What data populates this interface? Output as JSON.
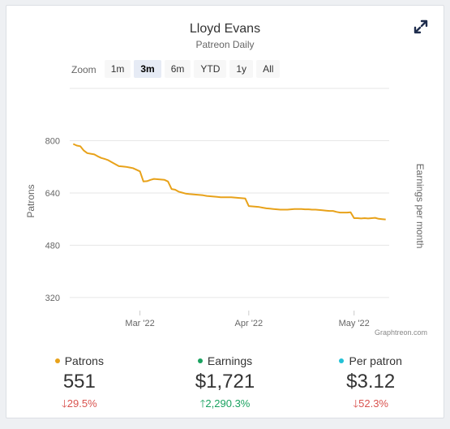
{
  "card": {
    "title": "Lloyd Evans",
    "subtitle": "Patreon Daily",
    "credit": "Graphtreon.com",
    "expand_icon": "expand-icon"
  },
  "zoom": {
    "label": "Zoom",
    "buttons": [
      "1m",
      "3m",
      "6m",
      "YTD",
      "1y",
      "All"
    ],
    "active": "3m"
  },
  "chart_data": {
    "type": "line",
    "title": "Lloyd Evans",
    "subtitle": "Patreon Daily",
    "ylabel": "Patrons",
    "y2label": "Earnings per month",
    "ylim": [
      280,
      960
    ],
    "yticks": [
      320,
      480,
      640,
      800
    ],
    "x_range_days": [
      0,
      91
    ],
    "xticks": [
      {
        "label": "Mar '22",
        "day": 20
      },
      {
        "label": "Apr '22",
        "day": 51
      },
      {
        "label": "May '22",
        "day": 81
      }
    ],
    "series": [
      {
        "name": "Patrons",
        "color": "#e8a21a",
        "points": [
          [
            1,
            790
          ],
          [
            2,
            785
          ],
          [
            3,
            783
          ],
          [
            4,
            770
          ],
          [
            5,
            762
          ],
          [
            6,
            760
          ],
          [
            7,
            758
          ],
          [
            8,
            752
          ],
          [
            9,
            747
          ],
          [
            10,
            744
          ],
          [
            11,
            740
          ],
          [
            12,
            734
          ],
          [
            13,
            728
          ],
          [
            14,
            722
          ],
          [
            15,
            721
          ],
          [
            16,
            720
          ],
          [
            17,
            718
          ],
          [
            18,
            716
          ],
          [
            19,
            711
          ],
          [
            20,
            706
          ],
          [
            21,
            675
          ],
          [
            22,
            676
          ],
          [
            23,
            680
          ],
          [
            24,
            683
          ],
          [
            25,
            682
          ],
          [
            26,
            681
          ],
          [
            27,
            680
          ],
          [
            28,
            675
          ],
          [
            29,
            652
          ],
          [
            30,
            650
          ],
          [
            31,
            644
          ],
          [
            32,
            641
          ],
          [
            33,
            638
          ],
          [
            34,
            637
          ],
          [
            35,
            636
          ],
          [
            36,
            635
          ],
          [
            37,
            634
          ],
          [
            38,
            633
          ],
          [
            39,
            631
          ],
          [
            40,
            630
          ],
          [
            41,
            629
          ],
          [
            42,
            628
          ],
          [
            43,
            627
          ],
          [
            44,
            627
          ],
          [
            45,
            627
          ],
          [
            46,
            627
          ],
          [
            47,
            626
          ],
          [
            48,
            625
          ],
          [
            49,
            624
          ],
          [
            50,
            623
          ],
          [
            51,
            600
          ],
          [
            52,
            599
          ],
          [
            53,
            598
          ],
          [
            54,
            597
          ],
          [
            55,
            595
          ],
          [
            56,
            593
          ],
          [
            57,
            592
          ],
          [
            58,
            591
          ],
          [
            59,
            590
          ],
          [
            60,
            589
          ],
          [
            61,
            589
          ],
          [
            62,
            589
          ],
          [
            63,
            590
          ],
          [
            64,
            591
          ],
          [
            65,
            591
          ],
          [
            66,
            591
          ],
          [
            67,
            590
          ],
          [
            68,
            590
          ],
          [
            69,
            589
          ],
          [
            70,
            589
          ],
          [
            71,
            588
          ],
          [
            72,
            587
          ],
          [
            73,
            586
          ],
          [
            74,
            585
          ],
          [
            75,
            585
          ],
          [
            76,
            582
          ],
          [
            77,
            580
          ],
          [
            78,
            580
          ],
          [
            79,
            580
          ],
          [
            80,
            581
          ],
          [
            81,
            563
          ],
          [
            82,
            563
          ],
          [
            83,
            562
          ],
          [
            84,
            563
          ],
          [
            85,
            562
          ],
          [
            86,
            563
          ],
          [
            87,
            564
          ],
          [
            88,
            561
          ],
          [
            89,
            560
          ],
          [
            90,
            559
          ]
        ]
      }
    ]
  },
  "stats": [
    {
      "label": "Patrons",
      "color": "#e8a21a",
      "value": "551",
      "change": "29.5%",
      "direction": "down"
    },
    {
      "label": "Earnings",
      "color": "#1aa260",
      "value": "$1,721",
      "change": "2,290.3%",
      "direction": "up"
    },
    {
      "label": "Per patron",
      "color": "#22c1d6",
      "value": "$3.12",
      "change": "52.3%",
      "direction": "down"
    }
  ]
}
